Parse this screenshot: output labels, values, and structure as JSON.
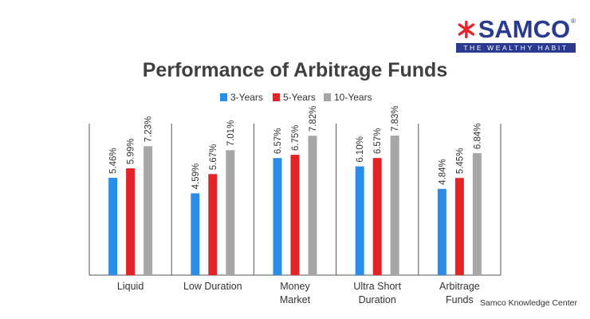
{
  "brand": {
    "name": "SAMCO",
    "tagline": "THE WEALTHY HABIT",
    "registered_mark": "®",
    "mark_color": "#e3262b",
    "text_color": "#2a3b8f"
  },
  "footer": {
    "credit": "Samco Knowledge Center"
  },
  "chart_data": {
    "type": "bar",
    "title": "Performance of Arbitrage Funds",
    "xlabel": "",
    "ylabel": "",
    "ylim": [
      0,
      8.5
    ],
    "grid": false,
    "legend_position": "top-center",
    "categories": [
      [
        "Liquid"
      ],
      [
        "Low Duration"
      ],
      [
        "Money",
        "Market"
      ],
      [
        "Ultra Short",
        "Duration"
      ],
      [
        "Arbitrage",
        "Funds"
      ]
    ],
    "series": [
      {
        "name": "3-Years",
        "color": "#2b8de8",
        "values": [
          5.46,
          4.59,
          6.57,
          6.1,
          4.84
        ],
        "labels": [
          "5.46%",
          "4.59%",
          "6.57%",
          "6.10%",
          "4.84%"
        ]
      },
      {
        "name": "5-Years",
        "color": "#e32328",
        "values": [
          5.99,
          5.67,
          6.75,
          6.57,
          5.45
        ],
        "labels": [
          "5.99%",
          "5.67%",
          "6.75%",
          "6.57%",
          "5.45%"
        ]
      },
      {
        "name": "10-Years",
        "color": "#a6a6a6",
        "values": [
          7.23,
          7.01,
          7.82,
          7.83,
          6.84
        ],
        "labels": [
          "7.23%",
          "7.01%",
          "7.82%",
          "7.83%",
          "6.84%"
        ]
      }
    ]
  }
}
